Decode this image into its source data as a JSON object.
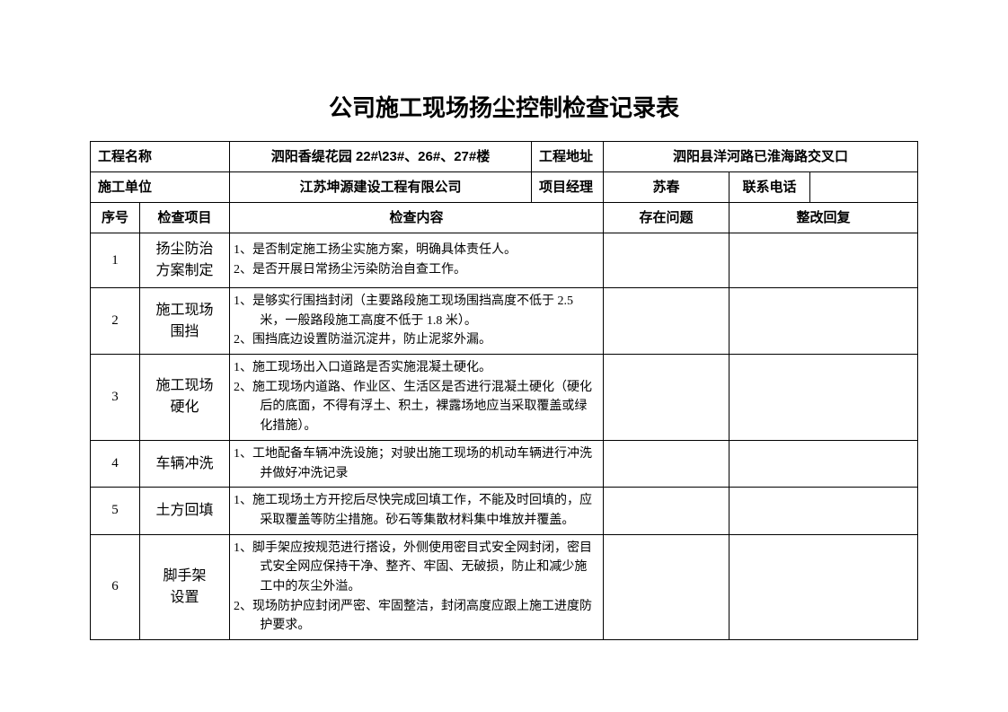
{
  "title": "公司施工现场扬尘控制检查记录表",
  "header": {
    "labels": {
      "project_name": "工程名称",
      "project_addr": "工程地址",
      "construction_unit": "施工单位",
      "project_manager": "项目经理",
      "contact_phone": "联系电话"
    },
    "project_name": "泗阳香缇花园 22#\\23#、26#、27#楼",
    "project_addr": "泗阳县洋河路已淮海路交叉口",
    "construction_unit": "江苏坤源建设工程有限公司",
    "project_manager": "苏春",
    "contact_phone": ""
  },
  "columns": {
    "no": "序号",
    "item": "检查项目",
    "content": "检查内容",
    "issue": "存在问题",
    "reply": "整改回复"
  },
  "rows": [
    {
      "no": "1",
      "item": "扬尘防治\n方案制定",
      "content_lines": [
        "1、是否制定施工扬尘实施方案，明确具体责任人。",
        "2、是否开展日常扬尘污染防治自查工作。"
      ],
      "issue": "",
      "reply": ""
    },
    {
      "no": "2",
      "item": "施工现场\n围挡",
      "content_lines": [
        "1、是够实行围挡封闭（主要路段施工现场围挡高度不低于 2.5 米，一般路段施工高度不低于 1.8 米）。",
        "2、围挡底边设置防溢沉淀井，防止泥浆外漏。"
      ],
      "issue": "",
      "reply": ""
    },
    {
      "no": "3",
      "item": "施工现场\n硬化",
      "content_lines": [
        "1、施工现场出入口道路是否实施混凝土硬化。",
        "2、施工现场内道路、作业区、生活区是否进行混凝土硬化（硬化后的底面，不得有浮土、积土，裸露场地应当采取覆盖或绿化措施）。"
      ],
      "issue": "",
      "reply": ""
    },
    {
      "no": "4",
      "item": "车辆冲洗",
      "content_lines": [
        "1、工地配备车辆冲洗设施；对驶出施工现场的机动车辆进行冲洗并做好冲洗记录"
      ],
      "issue": "",
      "reply": ""
    },
    {
      "no": "5",
      "item": "土方回填",
      "content_lines": [
        "1、施工现场土方开挖后尽快完成回填工作，不能及时回填的，应采取覆盖等防尘措施。砂石等集散材料集中堆放并覆盖。"
      ],
      "issue": "",
      "reply": ""
    },
    {
      "no": "6",
      "item": "脚手架\n设置",
      "content_lines": [
        "1、脚手架应按规范进行搭设，外侧使用密目式安全网封闭，密目式安全网应保持干净、整齐、牢固、无破损，防止和减少施工中的灰尘外溢。",
        "2、现场防护应封闭严密、牢固整洁，封闭高度应跟上施工进度防护要求。"
      ],
      "issue": "",
      "reply": ""
    }
  ]
}
